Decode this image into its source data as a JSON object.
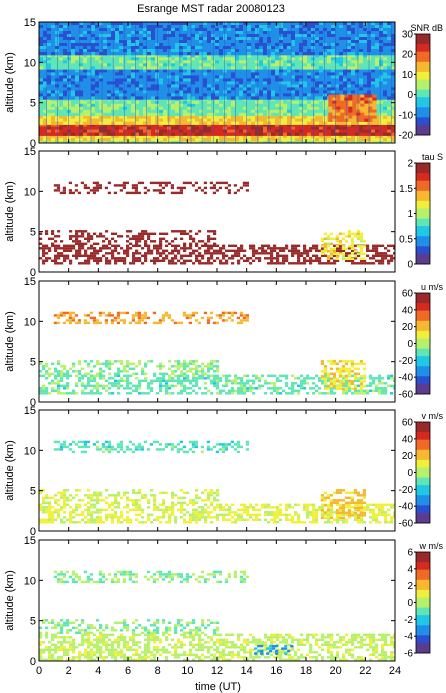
{
  "title": "Esrange MST radar 20080123",
  "xlabel": "time (UT)",
  "ylabel": "altitude (km)",
  "x_ticks": [
    "0",
    "2",
    "4",
    "6",
    "8",
    "10",
    "12",
    "14",
    "16",
    "18",
    "20",
    "22",
    "24"
  ],
  "y_ticks": [
    "0",
    "5",
    "10",
    "15"
  ],
  "colormap": [
    "#5a3d8f",
    "#2a4fd0",
    "#1f8fe8",
    "#22c7e6",
    "#5fe6b4",
    "#b7f06a",
    "#f0f03c",
    "#f6b830",
    "#ee6a26",
    "#d62a20",
    "#9a2a2a"
  ],
  "chart_data": [
    {
      "type": "heatmap",
      "panel": "SNR",
      "colorbar_label": "SNR dB",
      "colorbar_ticks": [
        "30",
        "20",
        "10",
        "0",
        "-10",
        "-20"
      ],
      "clim": [
        -20,
        30
      ],
      "xlim": [
        0,
        24
      ],
      "ylim": [
        0,
        15
      ],
      "coverage": "full",
      "layers": [
        {
          "y_range": [
            0.0,
            0.6
          ],
          "value": 3,
          "x_range": [
            0,
            24
          ]
        },
        {
          "y_range": [
            0.6,
            1.0
          ],
          "value": 12,
          "x_range": [
            0,
            24
          ]
        },
        {
          "y_range": [
            1.0,
            2.4
          ],
          "value": 24,
          "x_range": [
            0,
            24
          ]
        },
        {
          "y_range": [
            2.4,
            3.4
          ],
          "value": 12,
          "x_range": [
            0,
            24
          ]
        },
        {
          "y_range": [
            3.4,
            5.6
          ],
          "value": 2,
          "x_range": [
            0,
            24
          ]
        },
        {
          "y_range": [
            5.6,
            9.5
          ],
          "value": -9,
          "x_range": [
            0,
            24
          ]
        },
        {
          "y_range": [
            9.5,
            11.0
          ],
          "value": 1,
          "x_range": [
            0,
            24
          ]
        },
        {
          "y_range": [
            11.0,
            15.0
          ],
          "value": -9,
          "x_range": [
            0,
            24
          ]
        },
        {
          "y_range": [
            3.0,
            6.0
          ],
          "value": 18,
          "x_range": [
            19.5,
            22.5
          ]
        }
      ]
    },
    {
      "type": "heatmap",
      "panel": "tau",
      "colorbar_label": "tau S",
      "colorbar_ticks": [
        "2",
        "1.5",
        "1",
        "0.5",
        "0"
      ],
      "clim": [
        0,
        2
      ],
      "xlim": [
        0,
        24
      ],
      "ylim": [
        0,
        15
      ],
      "coverage": "sparse",
      "layers": [
        {
          "y_range": [
            1.0,
            3.4
          ],
          "value": 2.0,
          "x_range": [
            0,
            24
          ]
        },
        {
          "y_range": [
            3.4,
            5.2
          ],
          "value": 2.0,
          "x_range": [
            0,
            12
          ]
        },
        {
          "y_range": [
            9.8,
            11.2
          ],
          "value": 2.0,
          "x_range": [
            1,
            14
          ]
        },
        {
          "y_range": [
            1.5,
            5.2
          ],
          "value": 1.2,
          "x_range": [
            19,
            22
          ]
        }
      ]
    },
    {
      "type": "heatmap",
      "panel": "u",
      "colorbar_label": "u m/s",
      "colorbar_ticks": [
        "60",
        "40",
        "20",
        "0",
        "-20",
        "-40",
        "-60"
      ],
      "clim": [
        -60,
        60
      ],
      "xlim": [
        0,
        24
      ],
      "ylim": [
        0,
        15
      ],
      "coverage": "sparse",
      "layers": [
        {
          "y_range": [
            1.0,
            3.4
          ],
          "value": -10,
          "x_range": [
            0,
            24
          ]
        },
        {
          "y_range": [
            3.4,
            5.2
          ],
          "value": -5,
          "x_range": [
            0,
            12
          ]
        },
        {
          "y_range": [
            9.8,
            11.2
          ],
          "value": 25,
          "x_range": [
            1,
            14
          ]
        },
        {
          "y_range": [
            1.5,
            5.2
          ],
          "value": 15,
          "x_range": [
            19,
            22
          ]
        }
      ]
    },
    {
      "type": "heatmap",
      "panel": "v",
      "colorbar_label": "v m/s",
      "colorbar_ticks": [
        "60",
        "40",
        "20",
        "0",
        "-20",
        "-40",
        "-60"
      ],
      "clim": [
        -60,
        60
      ],
      "xlim": [
        0,
        24
      ],
      "ylim": [
        0,
        15
      ],
      "coverage": "sparse",
      "layers": [
        {
          "y_range": [
            1.0,
            3.4
          ],
          "value": 8,
          "x_range": [
            0,
            24
          ]
        },
        {
          "y_range": [
            3.4,
            5.2
          ],
          "value": 5,
          "x_range": [
            0,
            12
          ]
        },
        {
          "y_range": [
            9.8,
            11.2
          ],
          "value": -12,
          "x_range": [
            1,
            14
          ]
        },
        {
          "y_range": [
            1.5,
            5.2
          ],
          "value": 20,
          "x_range": [
            19,
            22
          ]
        }
      ]
    },
    {
      "type": "heatmap",
      "panel": "w",
      "colorbar_label": "w m/s",
      "colorbar_ticks": [
        "6",
        "4",
        "2",
        "0",
        "-2",
        "-4",
        "-6"
      ],
      "clim": [
        -6,
        6
      ],
      "xlim": [
        0,
        24
      ],
      "ylim": [
        0,
        15
      ],
      "coverage": "sparse",
      "layers": [
        {
          "y_range": [
            0.2,
            3.4
          ],
          "value": 0.2,
          "x_range": [
            0,
            24
          ]
        },
        {
          "y_range": [
            3.4,
            5.2
          ],
          "value": -0.5,
          "x_range": [
            0,
            12
          ]
        },
        {
          "y_range": [
            9.8,
            11.2
          ],
          "value": -0.5,
          "x_range": [
            1,
            14
          ]
        },
        {
          "y_range": [
            1.0,
            2.0
          ],
          "value": -3,
          "x_range": [
            14.5,
            17
          ]
        }
      ]
    }
  ]
}
